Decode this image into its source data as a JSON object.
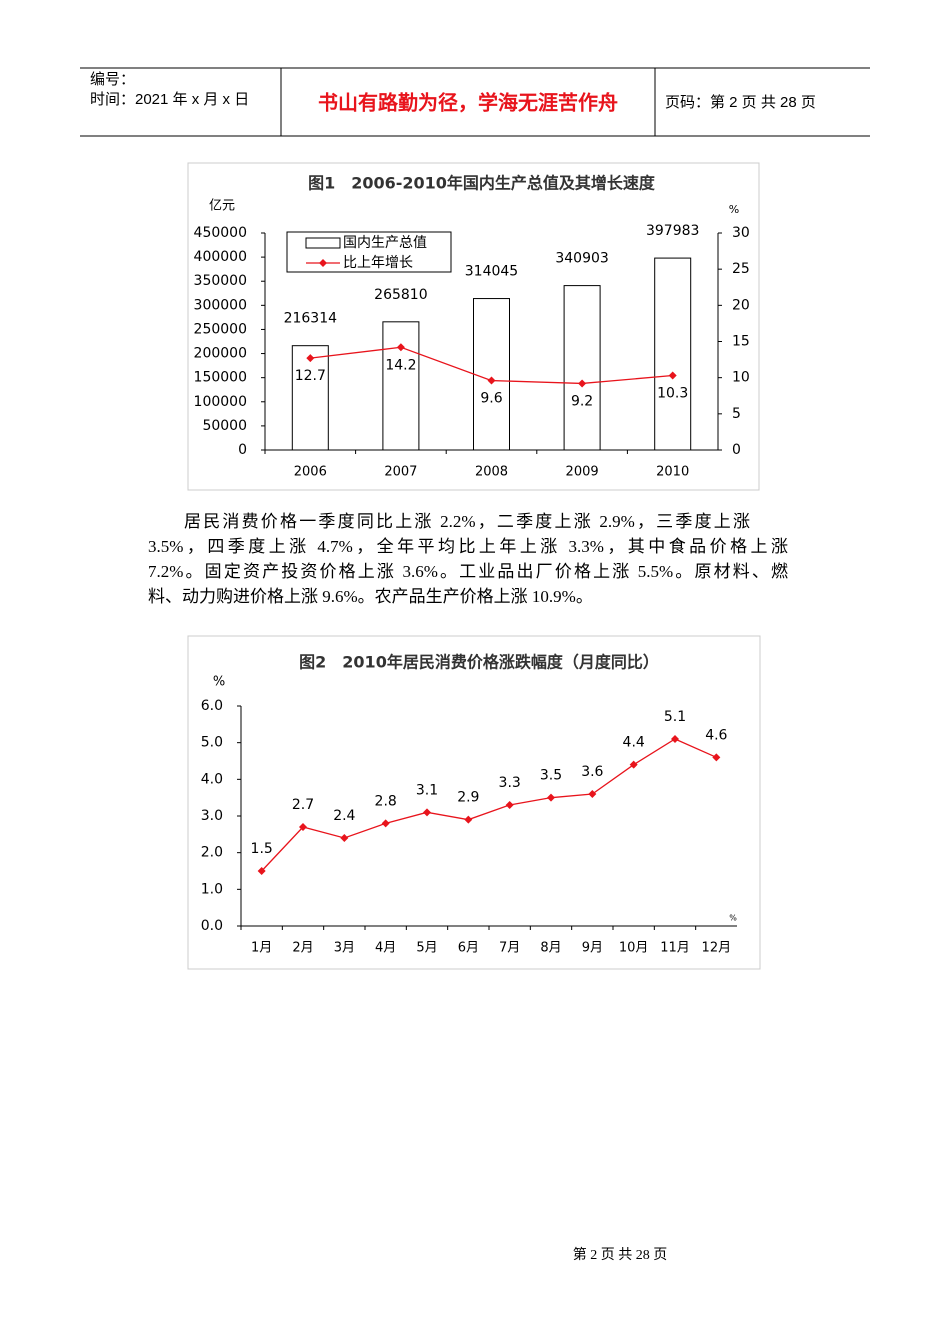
{
  "header": {
    "number_label": "编号：",
    "date_label": "时间：2021 年 x 月 x 日",
    "motto": "书山有路勤为径，学海无涯苦作舟",
    "page_label": "页码：第 2 页  共 28 页"
  },
  "charts": [
    {
      "type": "bar_line",
      "title": "图1　2006-2010年国内生产总值及其增长速度",
      "y_label": "亿元",
      "y2_label": "%",
      "categories": [
        "2006",
        "2007",
        "2008",
        "2009",
        "2010"
      ],
      "series": [
        {
          "name": "国内生产总值",
          "type": "bar",
          "color": "#ffffff",
          "values": [
            216314,
            265810,
            314045,
            340903,
            397983
          ]
        },
        {
          "name": "比上年增长",
          "type": "line",
          "color": "#e8141c",
          "axis": "y2",
          "values": [
            12.7,
            14.2,
            9.6,
            9.2,
            10.3
          ]
        }
      ],
      "ylim": [
        0,
        450000
      ],
      "yticks": [
        0,
        50000,
        100000,
        150000,
        200000,
        250000,
        300000,
        350000,
        400000,
        450000
      ],
      "y2lim": [
        0,
        30
      ],
      "y2ticks": [
        0,
        5,
        10,
        15,
        20,
        25,
        30
      ],
      "legend": "top-left",
      "grid": false
    },
    {
      "type": "line",
      "title": "图2　2010年居民消费价格涨跌幅度（月度同比）",
      "y_label": "%",
      "x_label": "%",
      "categories": [
        "1月",
        "2月",
        "3月",
        "4月",
        "5月",
        "6月",
        "7月",
        "8月",
        "9月",
        "10月",
        "11月",
        "12月"
      ],
      "values": [
        1.5,
        2.7,
        2.4,
        2.8,
        3.1,
        2.9,
        3.3,
        3.5,
        3.6,
        4.4,
        5.1,
        4.6
      ],
      "color": "#e8141c",
      "ylim": [
        0,
        6
      ],
      "yticks": [
        {
          "value": 0,
          "label": "0.0"
        },
        {
          "value": 1,
          "label": "1.0"
        },
        {
          "value": 2,
          "label": "2.0"
        },
        {
          "value": 3,
          "label": "3.0"
        },
        {
          "value": 4,
          "label": "4.0"
        },
        {
          "value": 5,
          "label": "5.0"
        },
        {
          "value": 6,
          "label": "6.0"
        }
      ],
      "grid": false
    }
  ],
  "paragraph": [
    "居民消费价格一季度同比上涨 2.2%，二季度上涨 2.9%，三季度上涨",
    "3.5%，四季度上涨 4.7%，全年平均比上年上涨 3.3%，其中食品价格上涨",
    "7.2%。固定资产投资价格上涨 3.6%。工业品出厂价格上涨 5.5%。原材料、燃",
    "料、动力购进价格上涨 9.6%。农产品生产价格上涨 10.9%。"
  ],
  "footer": "第 2 页 共 28 页"
}
